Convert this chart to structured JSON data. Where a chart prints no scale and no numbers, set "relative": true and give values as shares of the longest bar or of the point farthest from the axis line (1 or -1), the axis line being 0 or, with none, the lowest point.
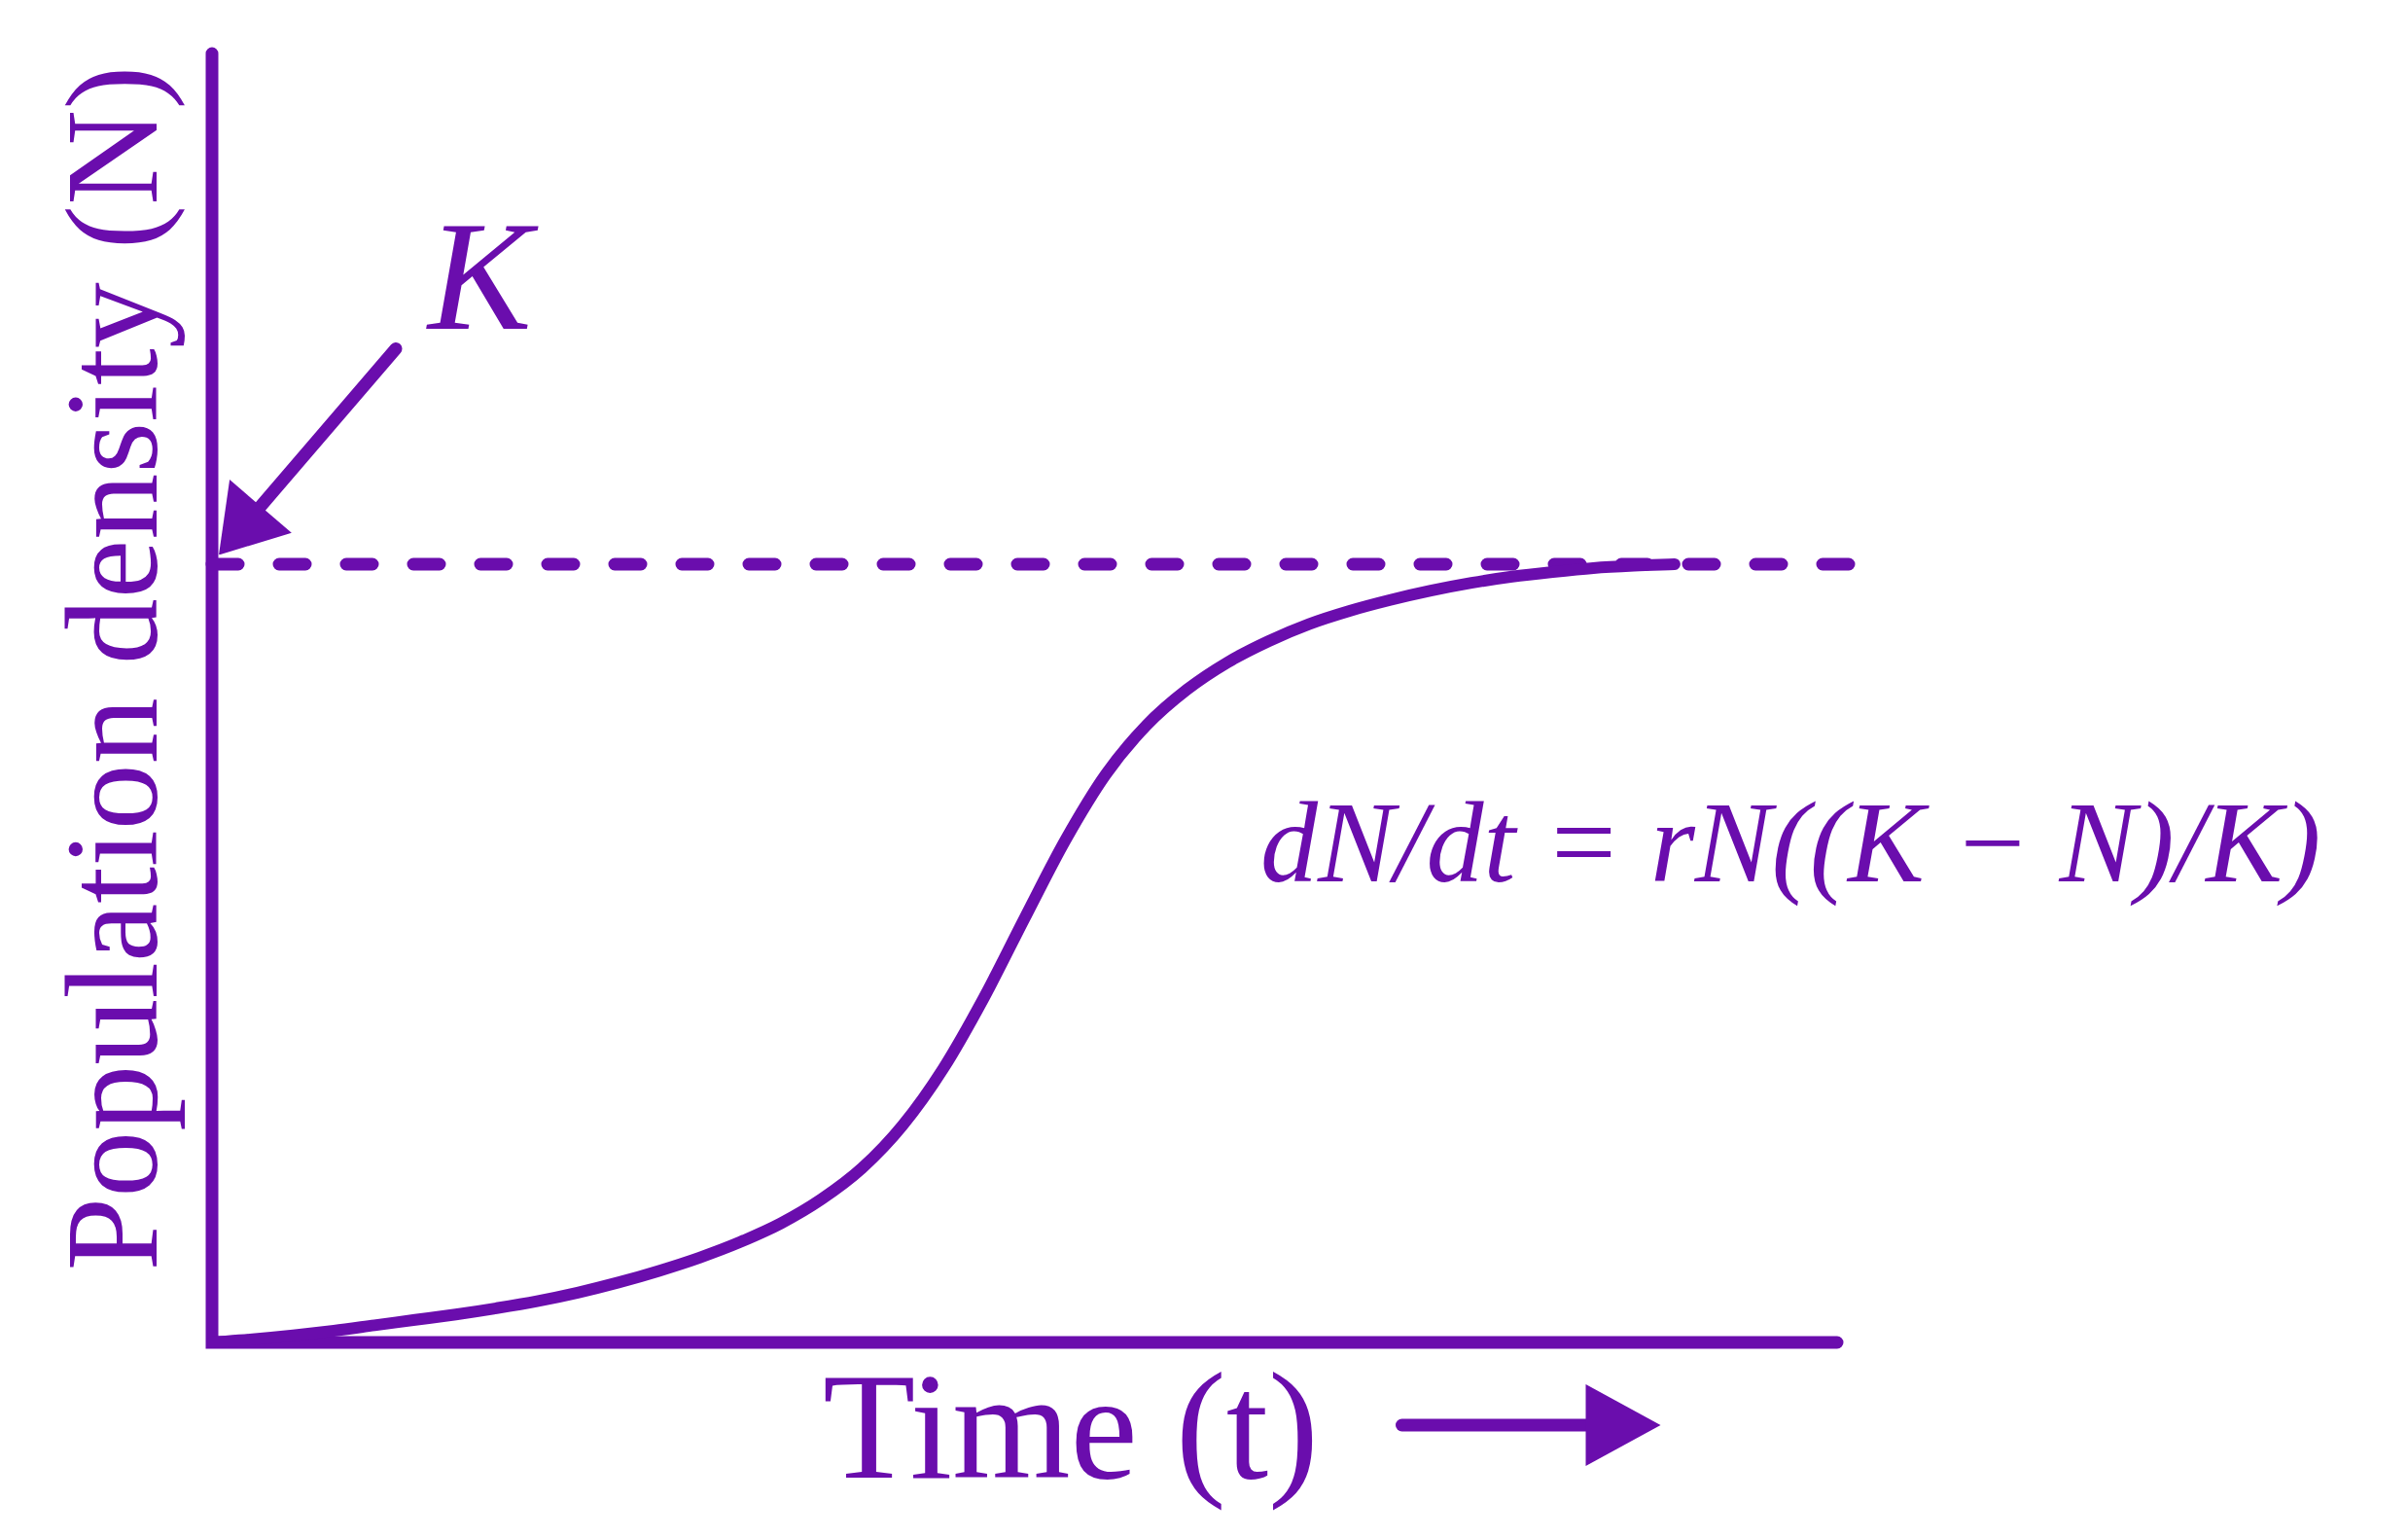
{
  "chart_data": {
    "type": "line",
    "relative": true,
    "xlabel": "Time (t)",
    "ylabel": "Population density (N)",
    "categories": [
      null,
      null,
      null,
      null,
      null,
      null,
      null,
      null,
      null,
      null,
      null,
      null,
      null,
      null,
      null,
      null,
      null,
      null,
      null,
      null,
      null,
      null,
      null,
      null,
      null,
      null,
      null,
      null,
      null,
      null,
      null,
      null,
      null,
      null,
      null,
      null,
      null,
      null,
      null,
      null,
      null
    ],
    "series": [
      {
        "color": "#6a0dad",
        "values": [
          0,
          0.004,
          0.009,
          0.015,
          0.022,
          0.029,
          0.036,
          0.044,
          0.053,
          0.064,
          0.077,
          0.092,
          0.109,
          0.129,
          0.153,
          0.184,
          0.224,
          0.279,
          0.352,
          0.443,
          0.545,
          0.645,
          0.73,
          0.793,
          0.839,
          0.874,
          0.901,
          0.923,
          0.94,
          0.954,
          0.966,
          0.976,
          0.984,
          0.99,
          0.995,
          0.998,
          1,
          null,
          null,
          null,
          null
        ]
      }
    ],
    "ref_lines": [
      {
        "axis": "y",
        "value": 1,
        "label": "K",
        "color": "#6a0dad",
        "line_style": "dashed"
      }
    ],
    "annotations": [
      "dN/dt = rN((K − N)/K)"
    ]
  }
}
